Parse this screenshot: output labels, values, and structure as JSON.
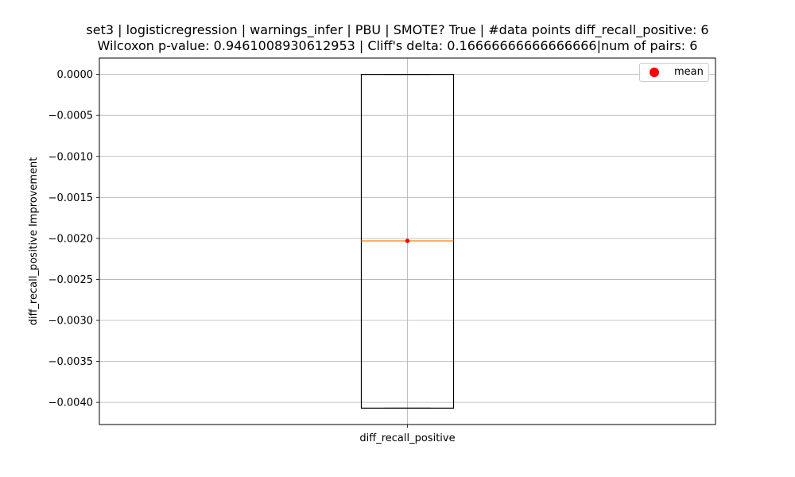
{
  "title_line1": "set3 | logisticregression | warnings_infer | PBU | SMOTE? True | #data points diff_recall_positive: 6",
  "title_line2": "Wilcoxon p-value: 0.9461008930612953 | Cliff's delta: 0.16666666666666666|num of pairs: 6",
  "legend": {
    "mean_label": "mean",
    "mean_color": "#ff0000"
  },
  "chart_data": {
    "type": "box",
    "title": "set3 | logisticregression | warnings_infer | PBU | SMOTE? True | #data points diff_recall_positive: 6 Wilcoxon p-value: 0.9461008930612953 | Cliff's delta: 0.16666666666666666|num of pairs: 6",
    "xlabel": "",
    "ylabel": "diff_recall_positive Improvement",
    "categories": [
      "diff_recall_positive"
    ],
    "box": {
      "whisker_low": -0.00407,
      "q1": -0.00407,
      "median": -0.00203,
      "q3": 0.0,
      "whisker_high": 0.0,
      "mean": -0.00203
    },
    "ylim": [
      -0.00427,
      0.0002
    ],
    "yticks": [
      0.0,
      -0.0005,
      -0.001,
      -0.0015,
      -0.002,
      -0.0025,
      -0.003,
      -0.0035,
      -0.004
    ],
    "ytick_labels": [
      "0.0000",
      "−0.0005",
      "−0.0010",
      "−0.0015",
      "−0.0020",
      "−0.0025",
      "−0.0030",
      "−0.0035",
      "−0.0040"
    ],
    "grid": true,
    "legend_position": "top-right",
    "colors": {
      "box": "#000000",
      "median": "#ff7f0e",
      "mean": "#ff0000",
      "grid": "#b0b0b0"
    }
  }
}
